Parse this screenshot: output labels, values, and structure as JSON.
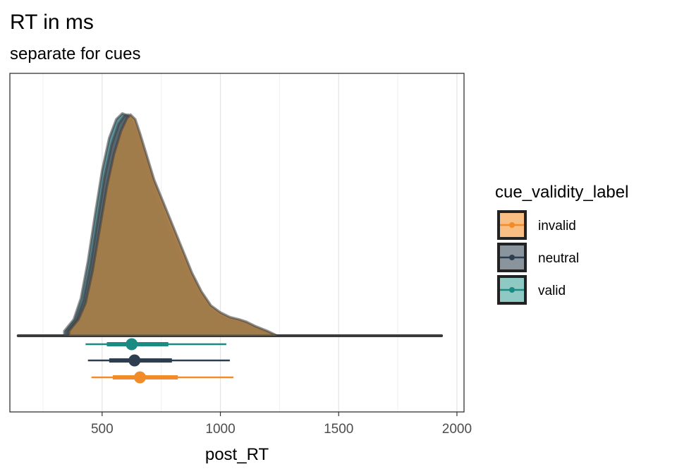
{
  "chart_data": {
    "type": "density",
    "title": "RT in ms",
    "subtitle": "separate for cues",
    "xlabel": "post_RT",
    "ylabel": "",
    "xlim": [
      110,
      2030
    ],
    "x_ticks": [
      500,
      1000,
      1500,
      2000
    ],
    "x_tick_labels": [
      "500",
      "1000",
      "1500",
      "2000"
    ],
    "grid": true,
    "legend": {
      "title": "cue_validity_label",
      "placement": "right"
    },
    "series": [
      {
        "name": "invalid",
        "color": "#F28C28",
        "fill": "#F8BE84",
        "density_points": [
          [
            360,
            0.02
          ],
          [
            400,
            0.07
          ],
          [
            430,
            0.14
          ],
          [
            460,
            0.28
          ],
          [
            490,
            0.46
          ],
          [
            520,
            0.64
          ],
          [
            550,
            0.78
          ],
          [
            580,
            0.88
          ],
          [
            605,
            0.935
          ],
          [
            620,
            0.95
          ],
          [
            640,
            0.93
          ],
          [
            660,
            0.87
          ],
          [
            690,
            0.77
          ],
          [
            720,
            0.67
          ],
          [
            760,
            0.57
          ],
          [
            800,
            0.47
          ],
          [
            840,
            0.37
          ],
          [
            880,
            0.27
          ],
          [
            920,
            0.19
          ],
          [
            960,
            0.13
          ],
          [
            1000,
            0.1
          ],
          [
            1040,
            0.08
          ],
          [
            1080,
            0.07
          ],
          [
            1110,
            0.06
          ],
          [
            1150,
            0.04
          ],
          [
            1200,
            0.02
          ],
          [
            1240,
            0.0
          ]
        ],
        "interval": {
          "point": 660,
          "inner": [
            545,
            820
          ],
          "outer": [
            455,
            1055
          ]
        }
      },
      {
        "name": "neutral",
        "color": "#2C3E50",
        "fill": "#8A949C",
        "density_points": [
          [
            350,
            0.02
          ],
          [
            390,
            0.07
          ],
          [
            420,
            0.15
          ],
          [
            450,
            0.3
          ],
          [
            480,
            0.49
          ],
          [
            510,
            0.68
          ],
          [
            540,
            0.82
          ],
          [
            570,
            0.91
          ],
          [
            595,
            0.945
          ],
          [
            610,
            0.95
          ],
          [
            630,
            0.92
          ],
          [
            655,
            0.86
          ],
          [
            685,
            0.76
          ],
          [
            715,
            0.66
          ],
          [
            755,
            0.55
          ],
          [
            795,
            0.45
          ],
          [
            835,
            0.35
          ],
          [
            875,
            0.26
          ],
          [
            915,
            0.18
          ],
          [
            955,
            0.12
          ],
          [
            995,
            0.09
          ],
          [
            1035,
            0.07
          ],
          [
            1075,
            0.06
          ],
          [
            1105,
            0.055
          ],
          [
            1145,
            0.035
          ],
          [
            1195,
            0.015
          ],
          [
            1235,
            0.0
          ]
        ],
        "interval": {
          "point": 637,
          "inner": [
            530,
            795
          ],
          "outer": [
            440,
            1040
          ]
        }
      },
      {
        "name": "valid",
        "color": "#1A8A83",
        "fill": "#8ECAC3",
        "density_points": [
          [
            340,
            0.02
          ],
          [
            380,
            0.07
          ],
          [
            410,
            0.16
          ],
          [
            440,
            0.32
          ],
          [
            470,
            0.52
          ],
          [
            500,
            0.71
          ],
          [
            530,
            0.85
          ],
          [
            560,
            0.93
          ],
          [
            585,
            0.955
          ],
          [
            600,
            0.95
          ],
          [
            620,
            0.92
          ],
          [
            645,
            0.85
          ],
          [
            675,
            0.75
          ],
          [
            705,
            0.65
          ],
          [
            745,
            0.54
          ],
          [
            785,
            0.44
          ],
          [
            825,
            0.34
          ],
          [
            865,
            0.25
          ],
          [
            905,
            0.17
          ],
          [
            945,
            0.12
          ],
          [
            985,
            0.09
          ],
          [
            1025,
            0.07
          ],
          [
            1065,
            0.06
          ],
          [
            1095,
            0.05
          ],
          [
            1135,
            0.03
          ],
          [
            1185,
            0.015
          ],
          [
            1225,
            0.0
          ]
        ],
        "interval": {
          "point": 625,
          "inner": [
            520,
            780
          ],
          "outer": [
            430,
            1025
          ]
        }
      }
    ],
    "overall_range": [
      145,
      1935
    ]
  }
}
